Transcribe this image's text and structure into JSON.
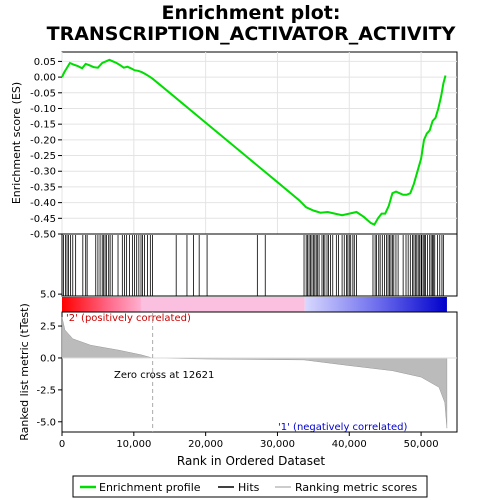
{
  "chart_data": {
    "type": "line",
    "title": "Enrichment plot:",
    "subtitle": "TRANSCRIPTION_ACTIVATOR_ACTIVITY",
    "es_panel": {
      "ylabel": "Enrichment score (ES)",
      "ylim": [
        -0.5,
        0.08
      ],
      "yticks": [
        0.05,
        0.0,
        -0.05,
        -0.1,
        -0.15,
        -0.2,
        -0.25,
        -0.3,
        -0.35,
        -0.4,
        -0.45,
        -0.5
      ],
      "ytick_labels": [
        "0.05",
        "0.00",
        "-0.05",
        "-0.10",
        "-0.15",
        "-0.20",
        "-0.25",
        "-0.30",
        "-0.35",
        "-0.40",
        "-0.45",
        "-0.50"
      ],
      "line_color": "#00dd00",
      "grid": true,
      "points": [
        [
          0,
          0.0
        ],
        [
          300,
          0.015
        ],
        [
          700,
          0.03
        ],
        [
          1100,
          0.045
        ],
        [
          1600,
          0.04
        ],
        [
          2200,
          0.035
        ],
        [
          2800,
          0.028
        ],
        [
          3300,
          0.042
        ],
        [
          3800,
          0.038
        ],
        [
          4400,
          0.032
        ],
        [
          5000,
          0.03
        ],
        [
          5600,
          0.045
        ],
        [
          6100,
          0.05
        ],
        [
          6600,
          0.055
        ],
        [
          7100,
          0.05
        ],
        [
          7600,
          0.045
        ],
        [
          8100,
          0.038
        ],
        [
          8600,
          0.03
        ],
        [
          9100,
          0.033
        ],
        [
          9600,
          0.028
        ],
        [
          10100,
          0.022
        ],
        [
          10600,
          0.02
        ],
        [
          11100,
          0.016
        ],
        [
          11600,
          0.01
        ],
        [
          12100,
          0.003
        ],
        [
          12621,
          -0.005
        ],
        [
          15000,
          -0.05
        ],
        [
          20000,
          -0.145
        ],
        [
          25000,
          -0.24
        ],
        [
          30000,
          -0.335
        ],
        [
          33000,
          -0.392
        ],
        [
          34000,
          -0.415
        ],
        [
          35000,
          -0.425
        ],
        [
          36000,
          -0.432
        ],
        [
          37000,
          -0.43
        ],
        [
          38000,
          -0.435
        ],
        [
          39000,
          -0.44
        ],
        [
          40000,
          -0.435
        ],
        [
          41000,
          -0.43
        ],
        [
          42000,
          -0.445
        ],
        [
          43000,
          -0.465
        ],
        [
          43500,
          -0.47
        ],
        [
          44000,
          -0.45
        ],
        [
          44500,
          -0.435
        ],
        [
          45000,
          -0.435
        ],
        [
          45500,
          -0.41
        ],
        [
          46000,
          -0.37
        ],
        [
          46500,
          -0.365
        ],
        [
          47000,
          -0.37
        ],
        [
          47500,
          -0.375
        ],
        [
          48000,
          -0.375
        ],
        [
          48500,
          -0.37
        ],
        [
          49000,
          -0.34
        ],
        [
          49500,
          -0.3
        ],
        [
          50000,
          -0.26
        ],
        [
          50400,
          -0.2
        ],
        [
          50800,
          -0.18
        ],
        [
          51200,
          -0.17
        ],
        [
          51600,
          -0.14
        ],
        [
          52000,
          -0.13
        ],
        [
          52400,
          -0.1
        ],
        [
          52800,
          -0.06
        ],
        [
          53100,
          -0.02
        ],
        [
          53400,
          0.005
        ]
      ]
    },
    "hits_panel": {
      "hit_positions": [
        200,
        500,
        700,
        900,
        1200,
        1500,
        1900,
        2900,
        3300,
        3500,
        4700,
        5000,
        5300,
        5600,
        5800,
        6000,
        6200,
        6500,
        6700,
        7000,
        7800,
        8400,
        8700,
        9000,
        9400,
        9800,
        10100,
        10400,
        10700,
        11000,
        11200,
        11500,
        11900,
        12300,
        12600,
        15900,
        17400,
        18300,
        19100,
        20200,
        27200,
        28300,
        33700,
        34000,
        34200,
        34400,
        34600,
        34800,
        35000,
        35200,
        35400,
        35600,
        35800,
        36200,
        36400,
        36600,
        36900,
        37100,
        37400,
        37700,
        38200,
        38500,
        39000,
        39300,
        39600,
        39800,
        40000,
        40200,
        40500,
        40700,
        41000,
        43300,
        43600,
        43800,
        44100,
        44300,
        44600,
        44900,
        45200,
        45400,
        45600,
        45800,
        46000,
        46200,
        46500,
        46800,
        47500,
        47900,
        48200,
        48500,
        48800,
        49000,
        49200,
        49400,
        49600,
        49800,
        50000,
        50100,
        50300,
        50500,
        50600,
        50900,
        51200,
        51400,
        51600,
        51700,
        51900,
        52300,
        52600,
        52900,
        53100
      ]
    },
    "metric_panel": {
      "ylabel": "Ranked list metric (tTest)",
      "ylim": [
        -5.8,
        3.6
      ],
      "yticks": [
        5.0,
        2.5,
        0.0,
        -2.5,
        -5.0
      ],
      "ytick_labels": [
        "5.0",
        "2.5",
        "0.0",
        "-2.5",
        "-5.0"
      ],
      "zero_cross": 12621,
      "zero_cross_label": "Zero cross at 12621",
      "pos_label": "'2' (positively correlated)",
      "neg_label": "'1' (negatively correlated)",
      "fill_color": "#bbbbbb"
    },
    "x_axis": {
      "xlabel": "Rank in Ordered Dataset",
      "xlim": [
        0,
        55000
      ],
      "xticks": [
        0,
        10000,
        20000,
        30000,
        40000,
        50000
      ],
      "xtick_labels": [
        "0",
        "10,000",
        "20,000",
        "30,000",
        "40,000",
        "50,000"
      ],
      "n_genes": 53600
    },
    "legend": {
      "placement": "bottom",
      "entries": [
        {
          "label": "Enrichment profile",
          "color": "#00dd00"
        },
        {
          "label": "Hits",
          "color": "#000000"
        },
        {
          "label": "Ranking metric scores",
          "color": "#bbbbbb"
        }
      ]
    }
  }
}
